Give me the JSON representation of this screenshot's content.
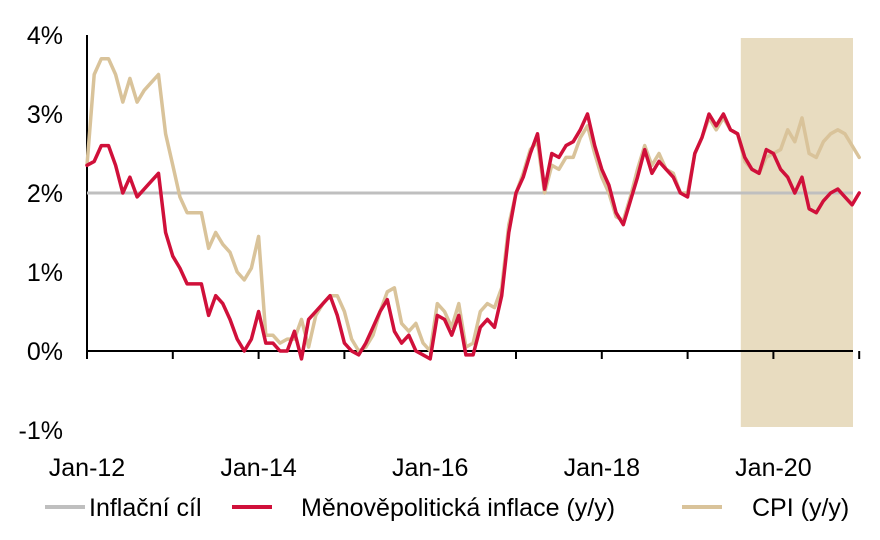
{
  "chart_data": {
    "type": "line",
    "title": "",
    "xlabel": "",
    "ylabel": "",
    "ylim": [
      -1,
      4
    ],
    "y_ticks": [
      "4%",
      "3%",
      "2%",
      "1%",
      "0%",
      "-1%"
    ],
    "x_ticks": [
      "Jan-12",
      "Jan-14",
      "Jan-16",
      "Jan-18",
      "Jan-20"
    ],
    "x_range": [
      "2012-01",
      "2020-12"
    ],
    "grid": false,
    "legend_position": "bottom",
    "highlight_region": {
      "from": "2019-09",
      "to": "2020-12",
      "color": "#e8dcc0"
    },
    "colors": {
      "target": "#bfbfbf",
      "monetary": "#d0103a",
      "cpi": "#d9c39a"
    },
    "series": [
      {
        "name": "Inflační cíl",
        "key": "target",
        "constant": 2.0
      },
      {
        "name": "Měnověpolitická inflace (y/y)",
        "key": "monetary",
        "points": [
          [
            "2012-01",
            2.35
          ],
          [
            "2012-02",
            2.4
          ],
          [
            "2012-03",
            2.6
          ],
          [
            "2012-04",
            2.6
          ],
          [
            "2012-05",
            2.35
          ],
          [
            "2012-06",
            2.0
          ],
          [
            "2012-07",
            2.2
          ],
          [
            "2012-08",
            1.95
          ],
          [
            "2012-09",
            2.05
          ],
          [
            "2012-10",
            2.15
          ],
          [
            "2012-11",
            2.25
          ],
          [
            "2012-12",
            1.5
          ],
          [
            "2013-01",
            1.2
          ],
          [
            "2013-02",
            1.05
          ],
          [
            "2013-03",
            0.85
          ],
          [
            "2013-04",
            0.85
          ],
          [
            "2013-05",
            0.85
          ],
          [
            "2013-06",
            0.45
          ],
          [
            "2013-07",
            0.7
          ],
          [
            "2013-08",
            0.6
          ],
          [
            "2013-09",
            0.4
          ],
          [
            "2013-10",
            0.15
          ],
          [
            "2013-11",
            0.0
          ],
          [
            "2013-12",
            0.15
          ],
          [
            "2014-01",
            0.5
          ],
          [
            "2014-02",
            0.1
          ],
          [
            "2014-03",
            0.1
          ],
          [
            "2014-04",
            0.0
          ],
          [
            "2014-05",
            0.0
          ],
          [
            "2014-06",
            0.25
          ],
          [
            "2014-07",
            -0.1
          ],
          [
            "2014-08",
            0.4
          ],
          [
            "2014-09",
            0.5
          ],
          [
            "2014-10",
            0.6
          ],
          [
            "2014-11",
            0.7
          ],
          [
            "2014-12",
            0.45
          ],
          [
            "2015-01",
            0.1
          ],
          [
            "2015-02",
            0.0
          ],
          [
            "2015-03",
            -0.05
          ],
          [
            "2015-04",
            0.1
          ],
          [
            "2015-05",
            0.3
          ],
          [
            "2015-06",
            0.5
          ],
          [
            "2015-07",
            0.65
          ],
          [
            "2015-08",
            0.25
          ],
          [
            "2015-09",
            0.1
          ],
          [
            "2015-10",
            0.2
          ],
          [
            "2015-11",
            0.0
          ],
          [
            "2015-12",
            -0.05
          ],
          [
            "2016-01",
            -0.1
          ],
          [
            "2016-02",
            0.45
          ],
          [
            "2016-03",
            0.4
          ],
          [
            "2016-04",
            0.2
          ],
          [
            "2016-05",
            0.45
          ],
          [
            "2016-06",
            -0.05
          ],
          [
            "2016-07",
            -0.05
          ],
          [
            "2016-08",
            0.3
          ],
          [
            "2016-09",
            0.4
          ],
          [
            "2016-10",
            0.3
          ],
          [
            "2016-11",
            0.7
          ],
          [
            "2016-12",
            1.5
          ],
          [
            "2017-01",
            2.0
          ],
          [
            "2017-02",
            2.2
          ],
          [
            "2017-03",
            2.5
          ],
          [
            "2017-04",
            2.75
          ],
          [
            "2017-05",
            2.05
          ],
          [
            "2017-06",
            2.5
          ],
          [
            "2017-07",
            2.45
          ],
          [
            "2017-08",
            2.6
          ],
          [
            "2017-09",
            2.65
          ],
          [
            "2017-10",
            2.8
          ],
          [
            "2017-11",
            3.0
          ],
          [
            "2017-12",
            2.6
          ],
          [
            "2018-01",
            2.3
          ],
          [
            "2018-02",
            2.1
          ],
          [
            "2018-03",
            1.75
          ],
          [
            "2018-04",
            1.6
          ],
          [
            "2018-05",
            1.9
          ],
          [
            "2018-06",
            2.2
          ],
          [
            "2018-07",
            2.55
          ],
          [
            "2018-08",
            2.25
          ],
          [
            "2018-09",
            2.4
          ],
          [
            "2018-10",
            2.3
          ],
          [
            "2018-11",
            2.2
          ],
          [
            "2018-12",
            2.0
          ],
          [
            "2019-01",
            1.95
          ],
          [
            "2019-02",
            2.5
          ],
          [
            "2019-03",
            2.7
          ],
          [
            "2019-04",
            3.0
          ],
          [
            "2019-05",
            2.85
          ],
          [
            "2019-06",
            3.0
          ],
          [
            "2019-07",
            2.8
          ],
          [
            "2019-08",
            2.75
          ],
          [
            "2019-09",
            2.45
          ],
          [
            "2019-10",
            2.3
          ],
          [
            "2019-11",
            2.25
          ],
          [
            "2019-12",
            2.55
          ],
          [
            "2020-01",
            2.5
          ],
          [
            "2020-02",
            2.3
          ],
          [
            "2020-03",
            2.2
          ],
          [
            "2020-04",
            2.0
          ],
          [
            "2020-05",
            2.2
          ],
          [
            "2020-06",
            1.8
          ],
          [
            "2020-07",
            1.75
          ],
          [
            "2020-08",
            1.9
          ],
          [
            "2020-09",
            2.0
          ],
          [
            "2020-10",
            2.05
          ],
          [
            "2020-11",
            1.95
          ],
          [
            "2020-12",
            1.85
          ],
          [
            "2021-01",
            2.0
          ]
        ]
      },
      {
        "name": "CPI (y/y)",
        "key": "cpi",
        "points": [
          [
            "2012-01",
            2.35
          ],
          [
            "2012-02",
            3.5
          ],
          [
            "2012-03",
            3.7
          ],
          [
            "2012-04",
            3.7
          ],
          [
            "2012-05",
            3.5
          ],
          [
            "2012-06",
            3.15
          ],
          [
            "2012-07",
            3.45
          ],
          [
            "2012-08",
            3.15
          ],
          [
            "2012-09",
            3.3
          ],
          [
            "2012-10",
            3.4
          ],
          [
            "2012-11",
            3.5
          ],
          [
            "2012-12",
            2.75
          ],
          [
            "2013-01",
            2.35
          ],
          [
            "2013-02",
            1.95
          ],
          [
            "2013-03",
            1.75
          ],
          [
            "2013-04",
            1.75
          ],
          [
            "2013-05",
            1.75
          ],
          [
            "2013-06",
            1.3
          ],
          [
            "2013-07",
            1.5
          ],
          [
            "2013-08",
            1.35
          ],
          [
            "2013-09",
            1.25
          ],
          [
            "2013-10",
            1.0
          ],
          [
            "2013-11",
            0.9
          ],
          [
            "2013-12",
            1.05
          ],
          [
            "2014-01",
            1.45
          ],
          [
            "2014-02",
            0.2
          ],
          [
            "2014-03",
            0.2
          ],
          [
            "2014-04",
            0.1
          ],
          [
            "2014-05",
            0.15
          ],
          [
            "2014-06",
            0.15
          ],
          [
            "2014-07",
            0.4
          ],
          [
            "2014-08",
            0.05
          ],
          [
            "2014-09",
            0.45
          ],
          [
            "2014-10",
            0.6
          ],
          [
            "2014-11",
            0.7
          ],
          [
            "2014-12",
            0.7
          ],
          [
            "2015-01",
            0.5
          ],
          [
            "2015-02",
            0.15
          ],
          [
            "2015-03",
            0.0
          ],
          [
            "2015-04",
            0.05
          ],
          [
            "2015-05",
            0.2
          ],
          [
            "2015-06",
            0.5
          ],
          [
            "2015-07",
            0.75
          ],
          [
            "2015-08",
            0.8
          ],
          [
            "2015-09",
            0.35
          ],
          [
            "2015-10",
            0.25
          ],
          [
            "2015-11",
            0.35
          ],
          [
            "2015-12",
            0.1
          ],
          [
            "2016-01",
            0.0
          ],
          [
            "2016-02",
            0.6
          ],
          [
            "2016-03",
            0.5
          ],
          [
            "2016-04",
            0.3
          ],
          [
            "2016-05",
            0.6
          ],
          [
            "2016-06",
            0.05
          ],
          [
            "2016-07",
            0.1
          ],
          [
            "2016-08",
            0.5
          ],
          [
            "2016-09",
            0.6
          ],
          [
            "2016-10",
            0.55
          ],
          [
            "2016-11",
            0.8
          ],
          [
            "2016-12",
            1.6
          ],
          [
            "2017-01",
            2.0
          ],
          [
            "2017-02",
            2.25
          ],
          [
            "2017-03",
            2.55
          ],
          [
            "2017-04",
            2.65
          ],
          [
            "2017-05",
            2.0
          ],
          [
            "2017-06",
            2.35
          ],
          [
            "2017-07",
            2.3
          ],
          [
            "2017-08",
            2.45
          ],
          [
            "2017-09",
            2.45
          ],
          [
            "2017-10",
            2.7
          ],
          [
            "2017-11",
            2.85
          ],
          [
            "2017-12",
            2.5
          ],
          [
            "2018-01",
            2.2
          ],
          [
            "2018-02",
            2.0
          ],
          [
            "2018-03",
            1.7
          ],
          [
            "2018-04",
            1.65
          ],
          [
            "2018-05",
            1.95
          ],
          [
            "2018-06",
            2.3
          ],
          [
            "2018-07",
            2.6
          ],
          [
            "2018-08",
            2.35
          ],
          [
            "2018-09",
            2.5
          ],
          [
            "2018-10",
            2.3
          ],
          [
            "2018-11",
            2.25
          ],
          [
            "2018-12",
            2.0
          ],
          [
            "2019-01",
            2.0
          ],
          [
            "2019-02",
            2.5
          ],
          [
            "2019-03",
            2.7
          ],
          [
            "2019-04",
            2.95
          ],
          [
            "2019-05",
            2.8
          ],
          [
            "2019-06",
            2.95
          ],
          [
            "2019-07",
            2.8
          ],
          [
            "2019-08",
            2.75
          ],
          [
            "2019-09",
            2.4
          ],
          [
            "2019-10",
            2.3
          ],
          [
            "2019-11",
            2.25
          ],
          [
            "2019-12",
            2.45
          ],
          [
            "2020-01",
            2.5
          ],
          [
            "2020-02",
            2.55
          ],
          [
            "2020-03",
            2.8
          ],
          [
            "2020-04",
            2.65
          ],
          [
            "2020-05",
            2.95
          ],
          [
            "2020-06",
            2.5
          ],
          [
            "2020-07",
            2.45
          ],
          [
            "2020-08",
            2.65
          ],
          [
            "2020-09",
            2.75
          ],
          [
            "2020-10",
            2.8
          ],
          [
            "2020-11",
            2.75
          ],
          [
            "2020-12",
            2.6
          ],
          [
            "2021-01",
            2.45
          ]
        ]
      }
    ]
  }
}
